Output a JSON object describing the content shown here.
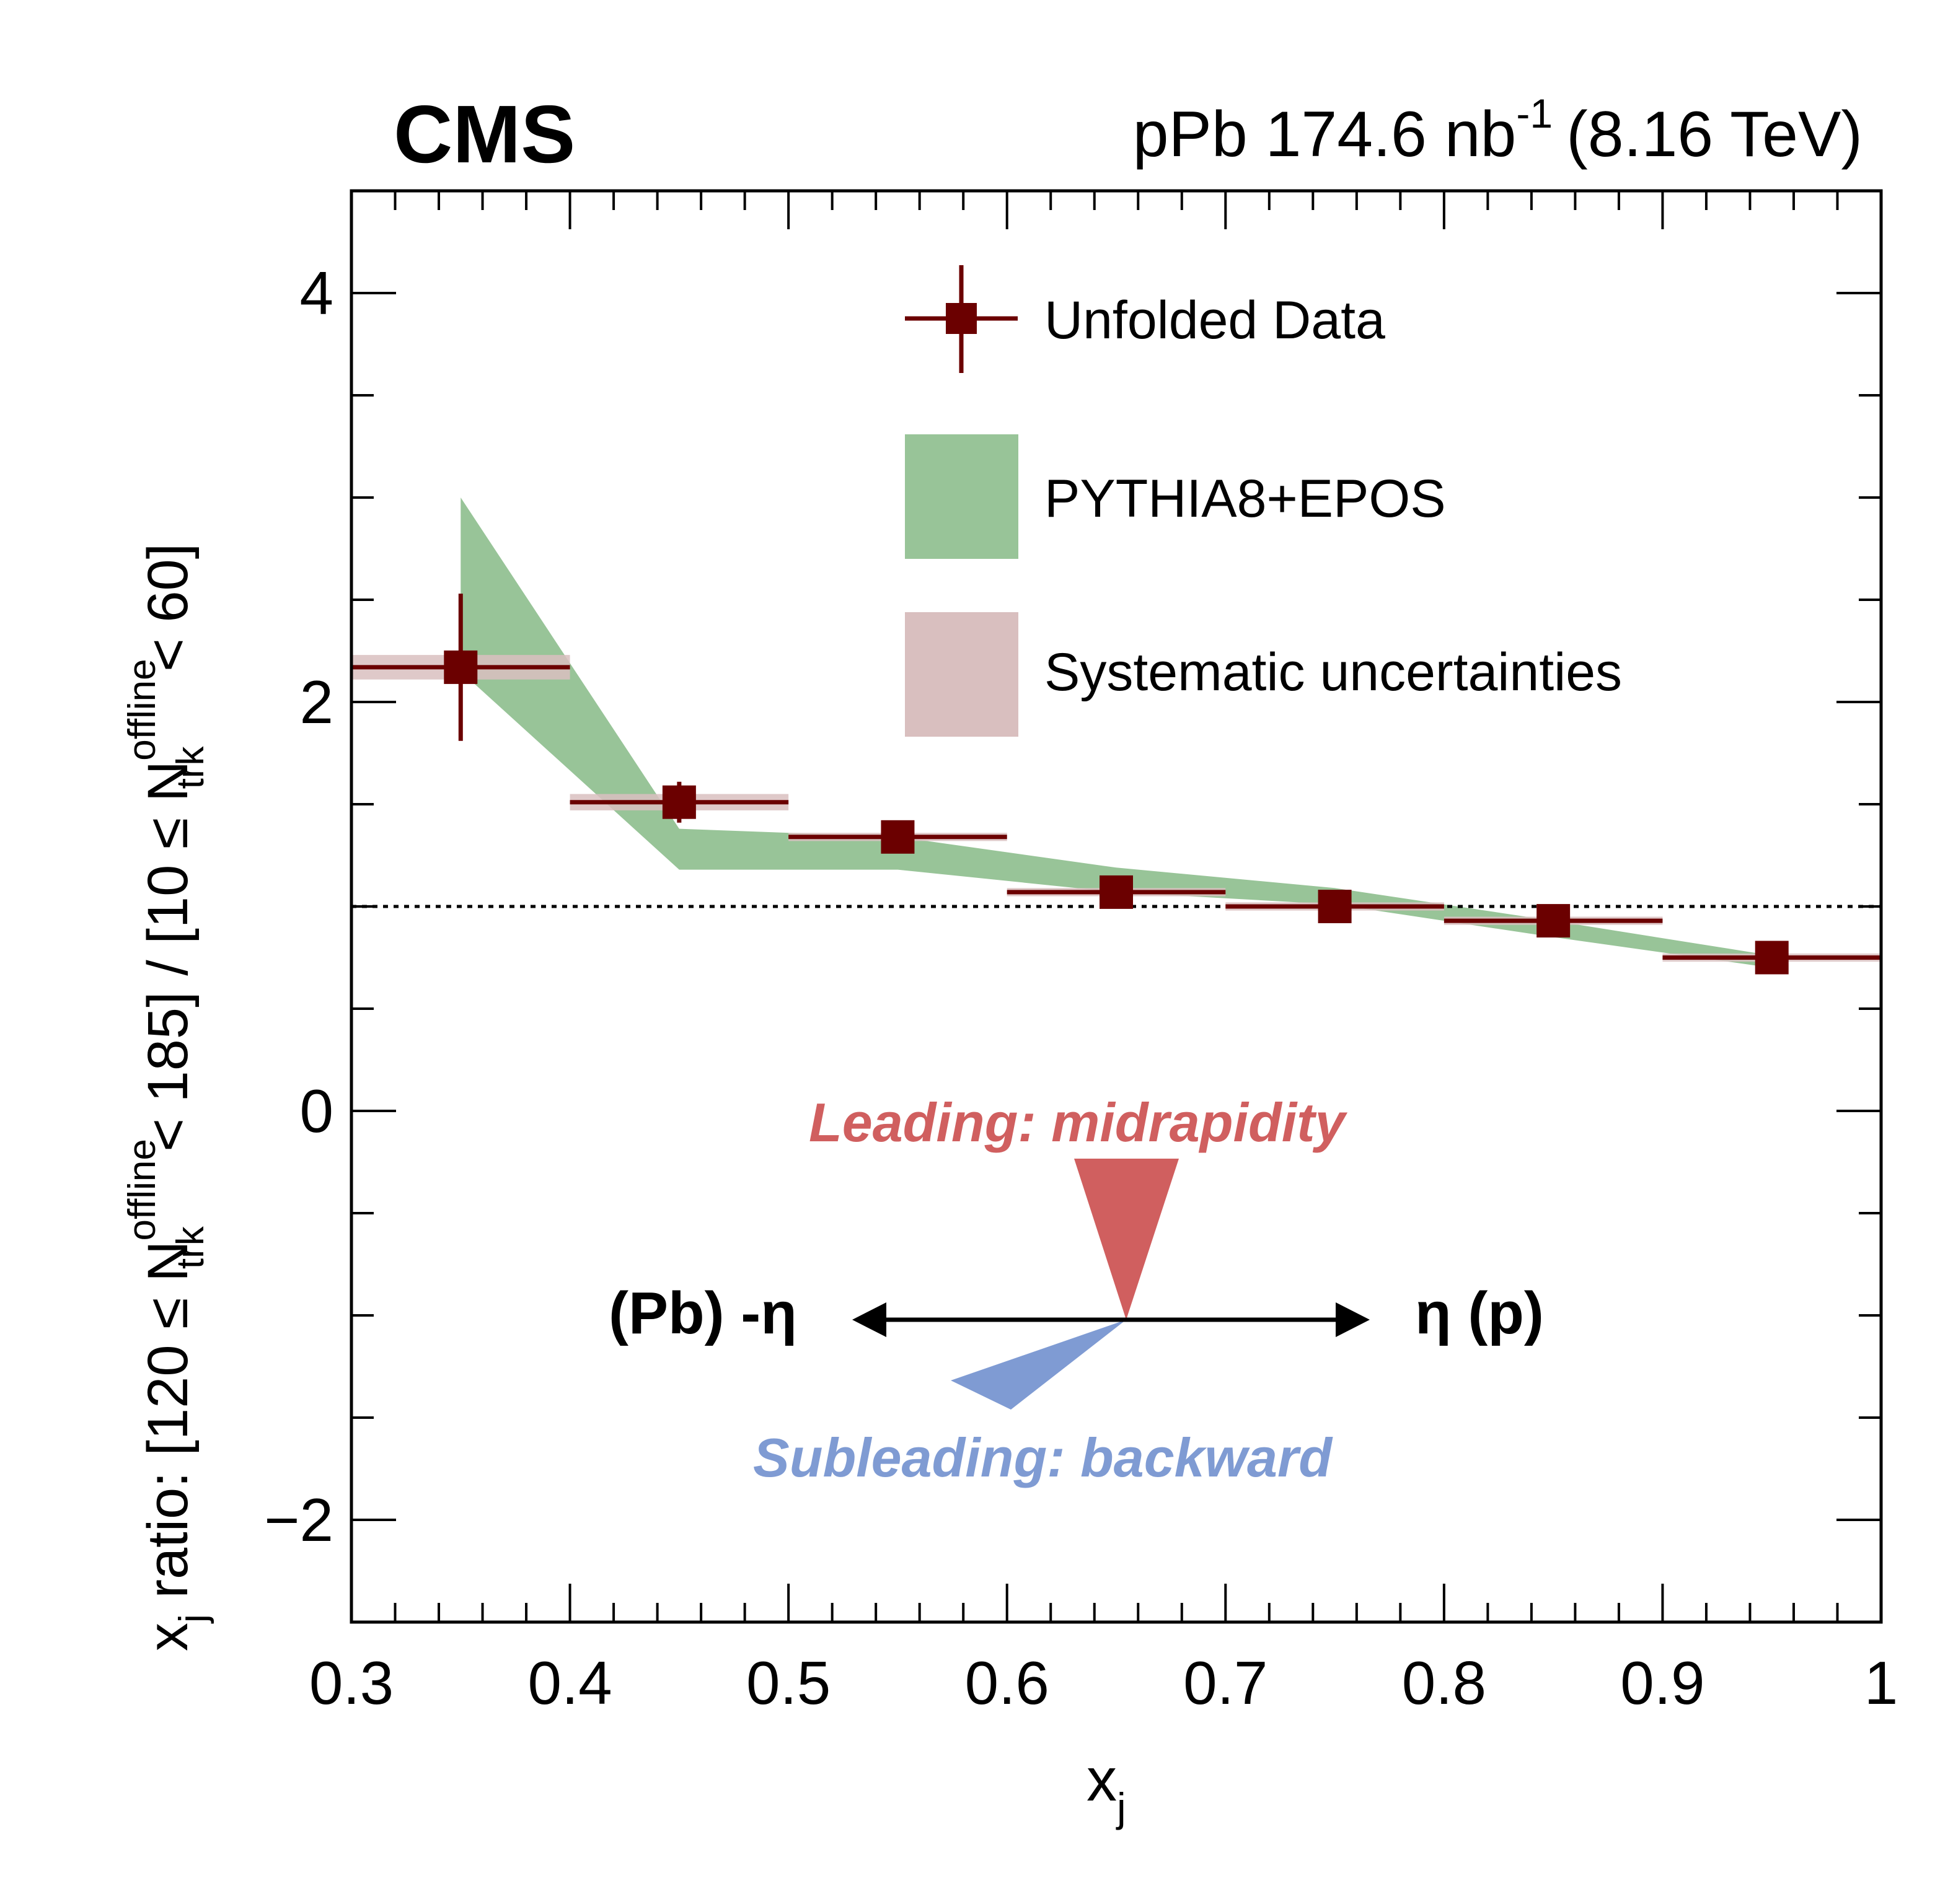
{
  "header": {
    "experiment": "CMS",
    "lumi_prefix": "pPb 174.6 nb",
    "lumi_exponent": "-1",
    "lumi_energy": "(8.16 TeV)"
  },
  "chart_data": {
    "type": "scatter",
    "xlabel": "x",
    "xlabel_sub": "j",
    "ylabel": {
      "p1": "x",
      "p1_sub": "j",
      "p2": " ratio: [120 ≤ N",
      "p2_sup": "offline",
      "p2_sub": "trk",
      "p3": " < 185] / [10 ≤ N",
      "p3_sup": "offline",
      "p3_sub": "trk",
      "p4": " < 60]"
    },
    "xlim": [
      0.3,
      1.0
    ],
    "ylim": [
      -2.5,
      4.5
    ],
    "x_ticks": [
      0.3,
      0.4,
      0.5,
      0.6,
      0.7,
      0.8,
      0.9,
      1.0
    ],
    "x_tick_labels": [
      "0.3",
      "0.4",
      "0.5",
      "0.6",
      "0.7",
      "0.8",
      "0.9",
      "1"
    ],
    "y_ticks": [
      -2,
      0,
      2,
      4
    ],
    "y_tick_labels": [
      "−2",
      "0",
      "2",
      "4"
    ],
    "reference_line": 1.0,
    "series": [
      {
        "name": "Unfolded Data",
        "color": "#6b0000",
        "points": [
          {
            "x": 0.35,
            "xerr": 0.05,
            "y": 2.17,
            "yerr": 0.36,
            "sys": 0.06
          },
          {
            "x": 0.45,
            "xerr": 0.05,
            "y": 1.51,
            "yerr": 0.1,
            "sys": 0.04
          },
          {
            "x": 0.55,
            "xerr": 0.05,
            "y": 1.34,
            "yerr": 0.04,
            "sys": 0.02
          },
          {
            "x": 0.65,
            "xerr": 0.05,
            "y": 1.07,
            "yerr": 0.03,
            "sys": 0.02
          },
          {
            "x": 0.75,
            "xerr": 0.05,
            "y": 1.0,
            "yerr": 0.03,
            "sys": 0.02
          },
          {
            "x": 0.85,
            "xerr": 0.05,
            "y": 0.93,
            "yerr": 0.03,
            "sys": 0.02
          },
          {
            "x": 0.95,
            "xerr": 0.05,
            "y": 0.75,
            "yerr": 0.03,
            "sys": 0.02
          }
        ]
      },
      {
        "name": "PYTHIA8+EPOS",
        "color": "#98c498",
        "band": [
          {
            "x": 0.35,
            "lo": 2.15,
            "hi": 3.0
          },
          {
            "x": 0.45,
            "lo": 1.18,
            "hi": 1.38
          },
          {
            "x": 0.55,
            "lo": 1.18,
            "hi": 1.34
          },
          {
            "x": 0.65,
            "lo": 1.07,
            "hi": 1.19
          },
          {
            "x": 0.75,
            "lo": 1.01,
            "hi": 1.09
          },
          {
            "x": 0.85,
            "lo": 0.85,
            "hi": 0.93
          },
          {
            "x": 0.95,
            "lo": 0.7,
            "hi": 0.76
          }
        ]
      },
      {
        "name": "Systematic uncertainties",
        "color": "#d9bfbf"
      }
    ],
    "annotations": {
      "leading": "Leading: midrapidity",
      "subleading": "Subleading: backward",
      "axis_left": "(Pb) -η",
      "axis_right": "η (p)",
      "leading_color": "#d05f5f",
      "subleading_color": "#7f9bd3"
    }
  }
}
